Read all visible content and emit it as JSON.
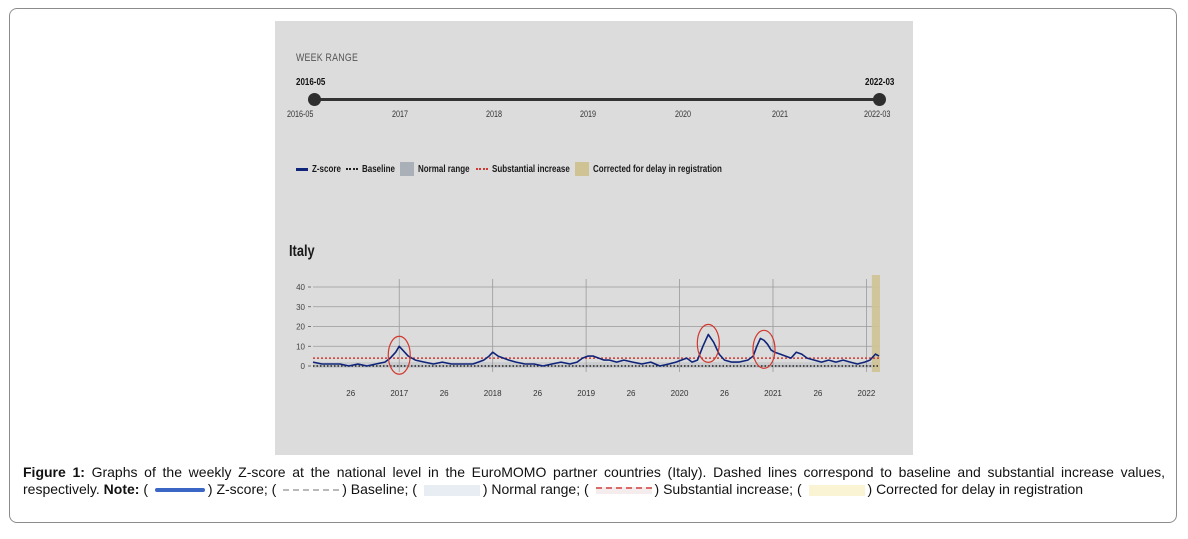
{
  "week_range": {
    "title": "WEEK RANGE",
    "start": "2016-05",
    "end": "2022-03",
    "start_label": "2016-05",
    "end_label": "2022-03",
    "year_ticks": [
      "2017",
      "2018",
      "2019",
      "2020",
      "2021"
    ]
  },
  "legend": {
    "zscore": "Z-score",
    "baseline": "Baseline",
    "normal": "Normal range",
    "substantial": "Substantial increase",
    "corrected": "Corrected for delay in registration"
  },
  "country": "Italy",
  "caption": {
    "figure_label": "Figure 1:",
    "text": "Graphs of the weekly Z-score at the national level in the EuroMOMO partner countries (Italy). Dashed lines correspond to baseline and substantial increase values, respectively.",
    "note_label": "Note:",
    "z_text": ") Z-score; (",
    "b_text": ") Baseline; (",
    "n_text": ") Normal range; (",
    "s_text": ") Substantial increase; (",
    "c_text": ") Corrected for delay in registration"
  },
  "colors": {
    "zscore": "#10257a",
    "baseline": "#222222",
    "substantial": "#d1382f",
    "normal_range": "#aab0b7",
    "corrected": "#cfc394",
    "highlight_circle": "#d1382f",
    "panel_bg": "#dcdcdc"
  },
  "chart_data": {
    "type": "line",
    "title": "Italy",
    "xlabel": "",
    "ylabel": "",
    "ylim": [
      0,
      40
    ],
    "y_ticks": [
      0,
      10,
      20,
      30,
      40
    ],
    "x_tick_labels": [
      "26",
      "2017",
      "26",
      "2018",
      "26",
      "2019",
      "26",
      "2020",
      "26",
      "2021",
      "26",
      "2022"
    ],
    "x_tick_weeks": [
      26,
      53,
      78,
      105,
      130,
      157,
      182,
      209,
      234,
      261,
      286,
      313
    ],
    "x_range_weeks": [
      5,
      320
    ],
    "grid": true,
    "baseline_value": 0,
    "substantial_increase_value": 4,
    "corrected_delay_weeks": [
      316,
      320
    ],
    "series": [
      {
        "name": "Z-score",
        "x_weeks": [
          5,
          10,
          15,
          20,
          25,
          30,
          35,
          40,
          45,
          48,
          51,
          53,
          55,
          58,
          62,
          67,
          72,
          77,
          82,
          87,
          91,
          94,
          97,
          100,
          103,
          105,
          108,
          111,
          114,
          118,
          123,
          128,
          133,
          138,
          143,
          148,
          152,
          155,
          158,
          161,
          164,
          167,
          170,
          174,
          178,
          183,
          188,
          193,
          198,
          203,
          207,
          210,
          213,
          216,
          219,
          222,
          225,
          228,
          231,
          234,
          238,
          242,
          247,
          250,
          252,
          254,
          256,
          258,
          260,
          262,
          265,
          268,
          271,
          274,
          277,
          280,
          284,
          288,
          292,
          296,
          300,
          304,
          308,
          312,
          315,
          318,
          320
        ],
        "values": [
          2,
          1,
          1,
          1,
          0,
          1,
          0,
          1,
          2,
          4,
          7,
          10,
          8,
          5,
          3,
          2,
          1,
          2,
          1,
          1,
          1,
          1,
          2,
          3,
          5,
          7,
          5,
          4,
          3,
          2,
          1,
          1,
          0,
          1,
          2,
          1,
          2,
          4,
          5,
          5,
          4,
          3,
          3,
          2,
          3,
          2,
          1,
          2,
          0,
          1,
          2,
          3,
          4,
          2,
          3,
          10,
          16,
          12,
          6,
          3,
          2,
          2,
          3,
          5,
          10,
          14,
          13,
          11,
          8,
          7,
          6,
          5,
          4,
          7,
          6,
          4,
          3,
          2,
          3,
          2,
          3,
          2,
          1,
          2,
          3,
          6,
          5
        ]
      }
    ],
    "highlighted_peaks": [
      {
        "week": 53,
        "value": 10
      },
      {
        "week": 225,
        "value": 16
      },
      {
        "week": 256,
        "value": 13
      }
    ]
  }
}
